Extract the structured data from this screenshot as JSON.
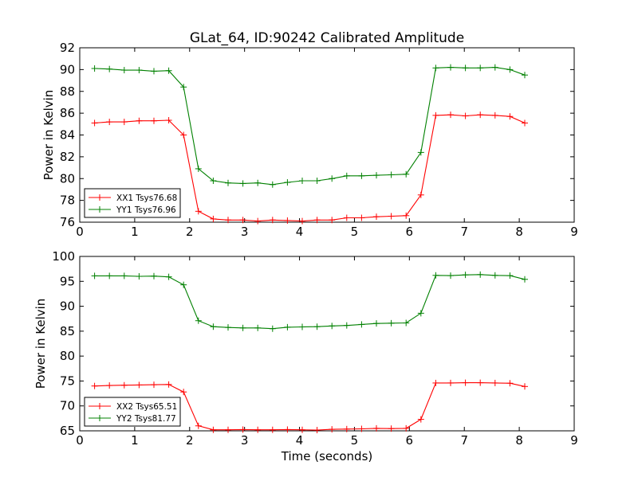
{
  "title": "GLat_64, ID:90242 Calibrated Amplitude",
  "chart_data": [
    {
      "type": "line",
      "title": "GLat_64, ID:90242 Calibrated Amplitude",
      "ylabel": "Power in Kelvin",
      "xlabel": "",
      "xlim": [
        0,
        9
      ],
      "ylim": [
        76,
        92
      ],
      "xticks": [
        "0",
        "1",
        "2",
        "3",
        "4",
        "5",
        "6",
        "7",
        "8",
        "9"
      ],
      "yticks": [
        "76",
        "78",
        "80",
        "82",
        "84",
        "86",
        "88",
        "90",
        "92"
      ],
      "legend": "lower-left",
      "grid": false,
      "x": [
        0.27,
        0.54,
        0.81,
        1.08,
        1.35,
        1.62,
        1.89,
        2.16,
        2.43,
        2.7,
        2.97,
        3.24,
        3.51,
        3.78,
        4.05,
        4.32,
        4.59,
        4.86,
        5.13,
        5.4,
        5.67,
        5.94,
        6.21,
        6.48,
        6.75,
        7.02,
        7.29,
        7.56,
        7.83,
        8.1
      ],
      "series": [
        {
          "name": "XX1 Tsys76.68",
          "color": "#ff0000",
          "values": [
            85.1,
            85.2,
            85.2,
            85.3,
            85.3,
            85.35,
            84.0,
            77.0,
            76.3,
            76.2,
            76.2,
            76.1,
            76.2,
            76.15,
            76.1,
            76.2,
            76.2,
            76.4,
            76.4,
            76.5,
            76.55,
            76.6,
            78.5,
            85.8,
            85.85,
            85.75,
            85.85,
            85.8,
            85.7,
            85.1
          ]
        },
        {
          "name": "YY1 Tsys76.96",
          "color": "#008000",
          "values": [
            90.1,
            90.05,
            89.95,
            89.95,
            89.85,
            89.9,
            88.4,
            80.9,
            79.8,
            79.6,
            79.55,
            79.6,
            79.45,
            79.65,
            79.8,
            79.8,
            80.0,
            80.25,
            80.25,
            80.3,
            80.35,
            80.4,
            82.4,
            90.15,
            90.2,
            90.15,
            90.15,
            90.2,
            90.0,
            89.5
          ]
        }
      ]
    },
    {
      "type": "line",
      "title": "",
      "ylabel": "Power in Kelvin",
      "xlabel": "Time (seconds)",
      "xlim": [
        0,
        9
      ],
      "ylim": [
        65,
        100
      ],
      "xticks": [
        "0",
        "1",
        "2",
        "3",
        "4",
        "5",
        "6",
        "7",
        "8",
        "9"
      ],
      "yticks": [
        "65",
        "70",
        "75",
        "80",
        "85",
        "90",
        "95",
        "100"
      ],
      "legend": "lower-left",
      "grid": false,
      "x": [
        0.27,
        0.54,
        0.81,
        1.08,
        1.35,
        1.62,
        1.89,
        2.16,
        2.43,
        2.7,
        2.97,
        3.24,
        3.51,
        3.78,
        4.05,
        4.32,
        4.59,
        4.86,
        5.13,
        5.4,
        5.67,
        5.94,
        6.21,
        6.48,
        6.75,
        7.02,
        7.29,
        7.56,
        7.83,
        8.1
      ],
      "series": [
        {
          "name": "XX2 Tsys65.51",
          "color": "#ff0000",
          "values": [
            74.0,
            74.1,
            74.15,
            74.2,
            74.25,
            74.3,
            72.8,
            66.0,
            65.2,
            65.2,
            65.25,
            65.2,
            65.2,
            65.25,
            65.2,
            65.15,
            65.3,
            65.35,
            65.4,
            65.5,
            65.45,
            65.5,
            67.3,
            74.6,
            74.6,
            74.65,
            74.65,
            74.6,
            74.55,
            73.9
          ]
        },
        {
          "name": "YY2 Tsys81.77",
          "color": "#008000",
          "values": [
            96.1,
            96.1,
            96.1,
            96.0,
            96.05,
            95.9,
            94.3,
            87.1,
            85.9,
            85.75,
            85.65,
            85.65,
            85.5,
            85.8,
            85.85,
            85.9,
            86.05,
            86.15,
            86.35,
            86.55,
            86.6,
            86.65,
            88.6,
            96.2,
            96.15,
            96.3,
            96.35,
            96.2,
            96.15,
            95.4
          ]
        }
      ]
    }
  ]
}
